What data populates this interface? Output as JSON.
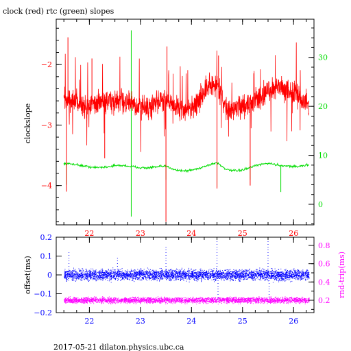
{
  "title": "clock (red) rtc (green) slopes",
  "footer": "2017-05-21 dilaton.physics.ubc.ca",
  "colors": {
    "clock": "#ff0000",
    "rtc": "#00dd00",
    "offset": "#0000ff",
    "rndtrip": "#ff00ff",
    "axis": "#000000"
  },
  "chart_data": [
    {
      "id": "slopes",
      "type": "line",
      "title": "clock (red) rtc (green) slopes",
      "xlabel": "",
      "ylabel": "clockslope",
      "y2label": "",
      "xlim": [
        21.35,
        26.4
      ],
      "ylim": [
        -4.65,
        -1.25
      ],
      "y2lim": [
        -4.2,
        37.8
      ],
      "x_ticks": [
        "22",
        "23",
        "24",
        "25",
        "26"
      ],
      "y_ticks": [
        "-2",
        "-3",
        "-4"
      ],
      "y2_ticks": [
        "0",
        "10",
        "20",
        "30"
      ],
      "series": [
        {
          "axis": "left",
          "color": "red",
          "x": [
            21.5,
            21.7,
            21.9,
            22.1,
            22.3,
            22.5,
            22.7,
            22.9,
            23.1,
            23.3,
            23.5,
            23.7,
            23.9,
            24.1,
            24.3,
            24.5,
            24.7,
            24.9,
            25.1,
            25.3,
            25.5,
            25.7,
            25.9,
            26.1,
            26.3
          ],
          "y": [
            -2.55,
            -2.6,
            -2.7,
            -2.65,
            -2.6,
            -2.62,
            -2.6,
            -2.7,
            -2.72,
            -2.65,
            -2.55,
            -2.7,
            -2.75,
            -2.65,
            -2.4,
            -2.3,
            -2.8,
            -2.7,
            -2.65,
            -2.55,
            -2.45,
            -2.35,
            -2.45,
            -2.5,
            -2.7
          ]
        },
        {
          "axis": "right",
          "color": "green",
          "x": [
            21.5,
            21.7,
            21.9,
            22.1,
            22.3,
            22.5,
            22.7,
            22.9,
            23.1,
            23.3,
            23.5,
            23.7,
            23.9,
            24.1,
            24.3,
            24.5,
            24.7,
            24.9,
            25.1,
            25.3,
            25.5,
            25.7,
            25.9,
            26.1,
            26.3
          ],
          "y": [
            8.3,
            8.2,
            7.8,
            7.5,
            7.6,
            7.9,
            7.9,
            7.6,
            7.4,
            7.6,
            7.8,
            7.0,
            6.8,
            7.2,
            7.9,
            8.5,
            7.0,
            6.8,
            7.3,
            8.0,
            8.4,
            8.0,
            7.8,
            7.7,
            8.1
          ]
        }
      ],
      "spikes_left": [
        {
          "x": 21.55,
          "y": -4.1
        },
        {
          "x": 21.58,
          "y": -1.55
        },
        {
          "x": 22.05,
          "y": -1.9
        },
        {
          "x": 22.3,
          "y": -3.55
        },
        {
          "x": 23.5,
          "y": -4.6
        },
        {
          "x": 23.52,
          "y": -1.7
        },
        {
          "x": 24.5,
          "y": -4.05
        },
        {
          "x": 24.53,
          "y": -1.85
        },
        {
          "x": 25.15,
          "y": -4.0
        }
      ],
      "spikes_right": [
        {
          "x": 21.55,
          "y": 4.0
        },
        {
          "x": 22.82,
          "y": 35.5
        },
        {
          "x": 22.82,
          "y": -2.5
        },
        {
          "x": 23.5,
          "y": 5.0
        },
        {
          "x": 24.5,
          "y": 3.5
        },
        {
          "x": 25.15,
          "y": 5.0
        },
        {
          "x": 25.75,
          "y": 2.5
        }
      ]
    },
    {
      "id": "offsets",
      "type": "scatter",
      "xlabel": "",
      "ylabel": "offset(ms)",
      "y2label": "rnd-trip(ms)",
      "xlim": [
        21.35,
        26.4
      ],
      "ylim": [
        -0.2,
        0.2
      ],
      "y2lim": [
        0.065,
        0.89
      ],
      "x_ticks": [
        "22",
        "23",
        "24",
        "25",
        "26"
      ],
      "y_ticks": [
        "0.2",
        "0.1",
        "0",
        "-0.1",
        "-0.2"
      ],
      "y2_ticks": [
        "0.8",
        "0.6",
        "0.4",
        "0.2"
      ],
      "series": [
        {
          "name": "offset",
          "axis": "left",
          "color": "blue",
          "x_range": [
            21.5,
            26.3
          ],
          "center": 0.0,
          "spread": 0.04
        },
        {
          "name": "rnd-trip",
          "axis": "right",
          "color": "magenta",
          "x_range": [
            21.5,
            26.3
          ],
          "center": 0.2,
          "spread": 0.045
        }
      ],
      "outliers_left": [
        {
          "x": 21.6,
          "y": 0.12
        },
        {
          "x": 22.55,
          "y": 0.1
        },
        {
          "x": 23.5,
          "y": 0.15
        },
        {
          "x": 24.5,
          "y": 0.19
        },
        {
          "x": 25.5,
          "y": 0.18
        },
        {
          "x": 24.52,
          "y": -0.14
        },
        {
          "x": 25.52,
          "y": -0.13
        }
      ]
    }
  ]
}
